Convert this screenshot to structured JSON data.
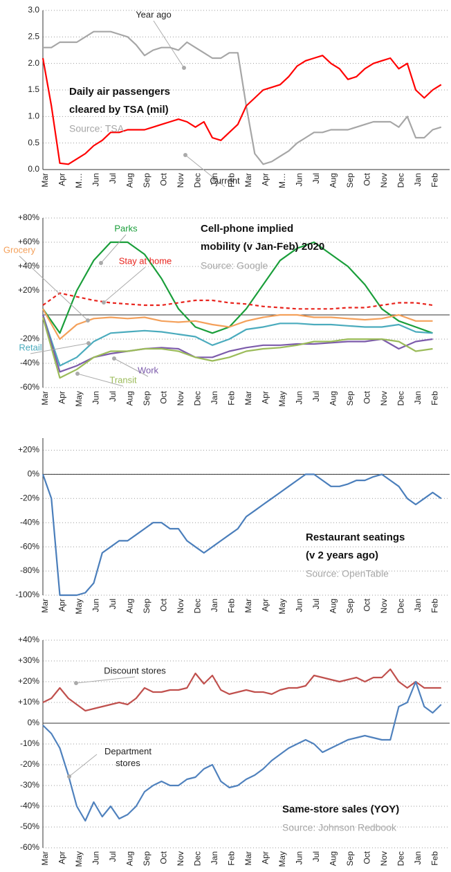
{
  "chart_data": [
    {
      "type": "line",
      "title": [
        "Daily air passengers",
        "cleared by TSA (mil)"
      ],
      "source": "Source: TSA",
      "categories": [
        "Mar",
        null,
        "Apr",
        null,
        "M…",
        null,
        "Jun",
        null,
        "Jul",
        null,
        "Aug",
        null,
        "Sep",
        null,
        "Oct",
        null,
        "Nov",
        null,
        "Dec",
        null,
        "Jan",
        null,
        "Feb",
        null,
        "Mar",
        null,
        "Apr",
        null,
        "M…",
        null,
        "Jun",
        null,
        "Jul",
        null,
        "Aug",
        null,
        "Sep",
        null,
        "Oct",
        null,
        "Nov",
        null,
        "Dec",
        null,
        "Jan",
        null,
        "Feb",
        null
      ],
      "series": [
        {
          "name": "Year ago",
          "color": "#a6a6a6",
          "values": [
            2.3,
            2.3,
            2.4,
            2.4,
            2.4,
            2.5,
            2.6,
            2.6,
            2.6,
            2.55,
            2.5,
            2.35,
            2.15,
            2.25,
            2.3,
            2.3,
            2.25,
            2.4,
            2.3,
            2.2,
            2.1,
            2.1,
            2.2,
            2.2,
            1.2,
            0.3,
            0.1,
            0.15,
            0.25,
            0.35,
            0.5,
            0.6,
            0.7,
            0.7,
            0.75,
            0.75,
            0.75,
            0.8,
            0.85,
            0.9,
            0.9,
            0.9,
            0.8,
            1.0,
            0.6,
            0.6,
            0.75,
            0.8
          ]
        },
        {
          "name": "Current",
          "color": "#ff0000",
          "values": [
            2.1,
            1.2,
            0.12,
            0.1,
            0.2,
            0.3,
            0.45,
            0.55,
            0.7,
            0.7,
            0.75,
            0.75,
            0.75,
            0.8,
            0.85,
            0.9,
            0.95,
            0.9,
            0.8,
            0.9,
            0.6,
            0.55,
            0.7,
            0.85,
            1.2,
            1.35,
            1.5,
            1.55,
            1.6,
            1.75,
            1.95,
            2.05,
            2.1,
            2.15,
            2.0,
            1.9,
            1.7,
            1.75,
            1.9,
            2.0,
            2.05,
            2.1,
            1.9,
            2.0,
            1.5,
            1.35,
            1.5,
            1.6
          ]
        }
      ],
      "ylim": [
        0,
        3
      ],
      "yticks": [
        {
          "value": 0,
          "label": "0.0"
        },
        0.5,
        {
          "value": 1,
          "label": "1.0"
        },
        1.5,
        {
          "value": 2,
          "label": "2.0"
        },
        2.5,
        {
          "value": 3,
          "label": "3.0"
        }
      ],
      "grid": true
    },
    {
      "type": "line",
      "title": [
        "Cell-phone implied",
        "mobility (v Jan-Feb) 2020"
      ],
      "source": "Source: Google",
      "categories": [
        "Mar",
        "Apr",
        "May",
        "Jun",
        "Jul",
        "Aug",
        "Sep",
        "Oct",
        "Nov",
        "Dec",
        "Jan",
        "Feb",
        "Mar",
        "Apr",
        "May",
        "Jun",
        "Jul",
        "Aug",
        "Sep",
        "Oct",
        "Nov",
        "Dec",
        "Jan",
        "Feb"
      ],
      "series": [
        {
          "name": "Parks",
          "color": "#1a9e3a",
          "values": [
            5,
            -15,
            20,
            45,
            60,
            60,
            50,
            30,
            5,
            -10,
            -15,
            -10,
            5,
            25,
            45,
            55,
            60,
            50,
            40,
            25,
            5,
            -5,
            -10,
            -15
          ]
        },
        {
          "name": "Stay at home",
          "color": "#e8231c",
          "style": "dashed",
          "values": [
            8,
            18,
            15,
            12,
            10,
            9,
            8,
            8,
            10,
            12,
            12,
            10,
            9,
            7,
            6,
            5,
            5,
            5,
            6,
            6,
            8,
            10,
            10,
            8
          ]
        },
        {
          "name": "Grocery",
          "color": "#f4a05a",
          "values": [
            5,
            -20,
            -8,
            -3,
            -2,
            -3,
            -2,
            -5,
            -6,
            -5,
            -8,
            -10,
            -5,
            -2,
            0,
            0,
            -2,
            -2,
            -3,
            -4,
            -3,
            0,
            -5,
            -5
          ]
        },
        {
          "name": "Retail",
          "color": "#4aabbd",
          "values": [
            0,
            -42,
            -35,
            -22,
            -15,
            -14,
            -13,
            -14,
            -16,
            -18,
            -25,
            -20,
            -12,
            -10,
            -7,
            -7,
            -8,
            -8,
            -9,
            -10,
            -10,
            -8,
            -14,
            -15
          ]
        },
        {
          "name": "Work",
          "color": "#7c5bab",
          "values": [
            0,
            -47,
            -42,
            -35,
            -32,
            -30,
            -28,
            -27,
            -28,
            -35,
            -35,
            -30,
            -27,
            -25,
            -25,
            -24,
            -24,
            -23,
            -22,
            -22,
            -20,
            -28,
            -22,
            -20
          ]
        },
        {
          "name": "Transit",
          "color": "#9bbb59",
          "values": [
            -2,
            -52,
            -45,
            -35,
            -30,
            -30,
            -28,
            -28,
            -30,
            -35,
            -38,
            -35,
            -30,
            -28,
            -27,
            -25,
            -22,
            -22,
            -20,
            -20,
            -20,
            -22,
            -30,
            -28
          ]
        }
      ],
      "ylim": [
        -60,
        80
      ],
      "yticks": [
        {
          "value": -60,
          "label": "-60%"
        },
        {
          "value": -40,
          "label": "-40%"
        },
        {
          "value": -20,
          "label": "-20%"
        },
        {
          "value": 20,
          "label": "+20%"
        },
        {
          "value": 40,
          "label": "+40%"
        },
        {
          "value": 60,
          "label": "+60%"
        },
        {
          "value": 80,
          "label": "+80%"
        }
      ],
      "grid": true
    },
    {
      "type": "line",
      "title": [
        "Restaurant seatings",
        "(v 2 years ago)"
      ],
      "source": "Source: OpenTable",
      "categories": [
        "Mar",
        null,
        "Apr",
        null,
        "May",
        null,
        "Jun",
        null,
        "Jul",
        null,
        "Aug",
        null,
        "Sep",
        null,
        "Oct",
        null,
        "Nov",
        null,
        "Dec",
        null,
        "Jan",
        null,
        "Feb",
        null,
        "Mar",
        null,
        "Apr",
        null,
        "May",
        null,
        "Jun",
        null,
        "Jul",
        null,
        "Aug",
        null,
        "Sep",
        null,
        "Oct",
        null,
        "Nov",
        null,
        "Dec",
        null,
        "Jan",
        null,
        "Feb",
        null
      ],
      "series": [
        {
          "name": null,
          "color": "#4a7ebb",
          "values": [
            0,
            -20,
            -100,
            -100,
            -100,
            -98,
            -90,
            -65,
            -60,
            -55,
            -55,
            -50,
            -45,
            -40,
            -40,
            -45,
            -45,
            -55,
            -60,
            -65,
            -60,
            -55,
            -50,
            -45,
            -35,
            -30,
            -25,
            -20,
            -15,
            -10,
            -5,
            0,
            0,
            -5,
            -10,
            -10,
            -8,
            -5,
            -5,
            -2,
            0,
            -5,
            -10,
            -20,
            -25,
            -20,
            -15,
            -20
          ]
        }
      ],
      "ylim": [
        -100,
        30
      ],
      "yticks": [
        {
          "value": -100,
          "label": "-100%"
        },
        {
          "value": -80,
          "label": "-80%"
        },
        {
          "value": -60,
          "label": "-60%"
        },
        {
          "value": -40,
          "label": "-40%"
        },
        {
          "value": -20,
          "label": "-20%"
        },
        {
          "value": 0,
          "label": "0%"
        },
        {
          "value": 20,
          "label": "+20%"
        }
      ],
      "grid": true
    },
    {
      "type": "line",
      "title": [
        "Same-store sales (YOY)"
      ],
      "source": "Source: Johnson Redbook",
      "categories": [
        "Mar",
        null,
        "Apr",
        null,
        "May",
        null,
        "Jun",
        null,
        "Jul",
        null,
        "Aug",
        null,
        "Sep",
        null,
        "Oct",
        null,
        "Nov",
        null,
        "Dec",
        null,
        "Jan",
        null,
        "Feb",
        null,
        "Mar",
        null,
        "Apr",
        null,
        "May",
        null,
        "Jun",
        null,
        "Jul",
        null,
        "Aug",
        null,
        "Sep",
        null,
        "Oct",
        null,
        "Nov",
        null,
        "Dec",
        null,
        "Jan",
        null,
        "Feb",
        null
      ],
      "series": [
        {
          "name": "Discount stores",
          "color": "#c0504d",
          "values": [
            10,
            12,
            17,
            12,
            9,
            6,
            7,
            8,
            9,
            10,
            9,
            12,
            17,
            15,
            15,
            16,
            16,
            17,
            24,
            19,
            23,
            16,
            14,
            15,
            16,
            15,
            15,
            14,
            16,
            17,
            17,
            18,
            23,
            22,
            21,
            20,
            21,
            22,
            20,
            22,
            22,
            26,
            20,
            17,
            20,
            17,
            17,
            17
          ]
        },
        {
          "name": "Department stores",
          "color": "#4f81bd",
          "values": [
            -1,
            -5,
            -12,
            -25,
            -40,
            -47,
            -38,
            -45,
            -40,
            -46,
            -44,
            -40,
            -33,
            -30,
            -28,
            -30,
            -30,
            -27,
            -26,
            -22,
            -20,
            -28,
            -31,
            -30,
            -27,
            -25,
            -22,
            -18,
            -15,
            -12,
            -10,
            -8,
            -10,
            -14,
            -12,
            -10,
            -8,
            -7,
            -6,
            -7,
            -8,
            -8,
            8,
            10,
            20,
            8,
            5,
            9
          ]
        }
      ],
      "ylim": [
        -60,
        40
      ],
      "yticks": [
        {
          "value": -60,
          "label": "-60%"
        },
        {
          "value": -50,
          "label": "-50%"
        },
        {
          "value": -40,
          "label": "-40%"
        },
        {
          "value": -30,
          "label": "-30%"
        },
        {
          "value": -20,
          "label": "-20%"
        },
        {
          "value": -10,
          "label": "-10%"
        },
        {
          "value": 0,
          "label": "0%"
        },
        {
          "value": 10,
          "label": "+10%"
        },
        {
          "value": 20,
          "label": "+20%"
        },
        {
          "value": 30,
          "label": "+30%"
        },
        {
          "value": 40,
          "label": "+40%"
        }
      ],
      "grid": true
    }
  ]
}
